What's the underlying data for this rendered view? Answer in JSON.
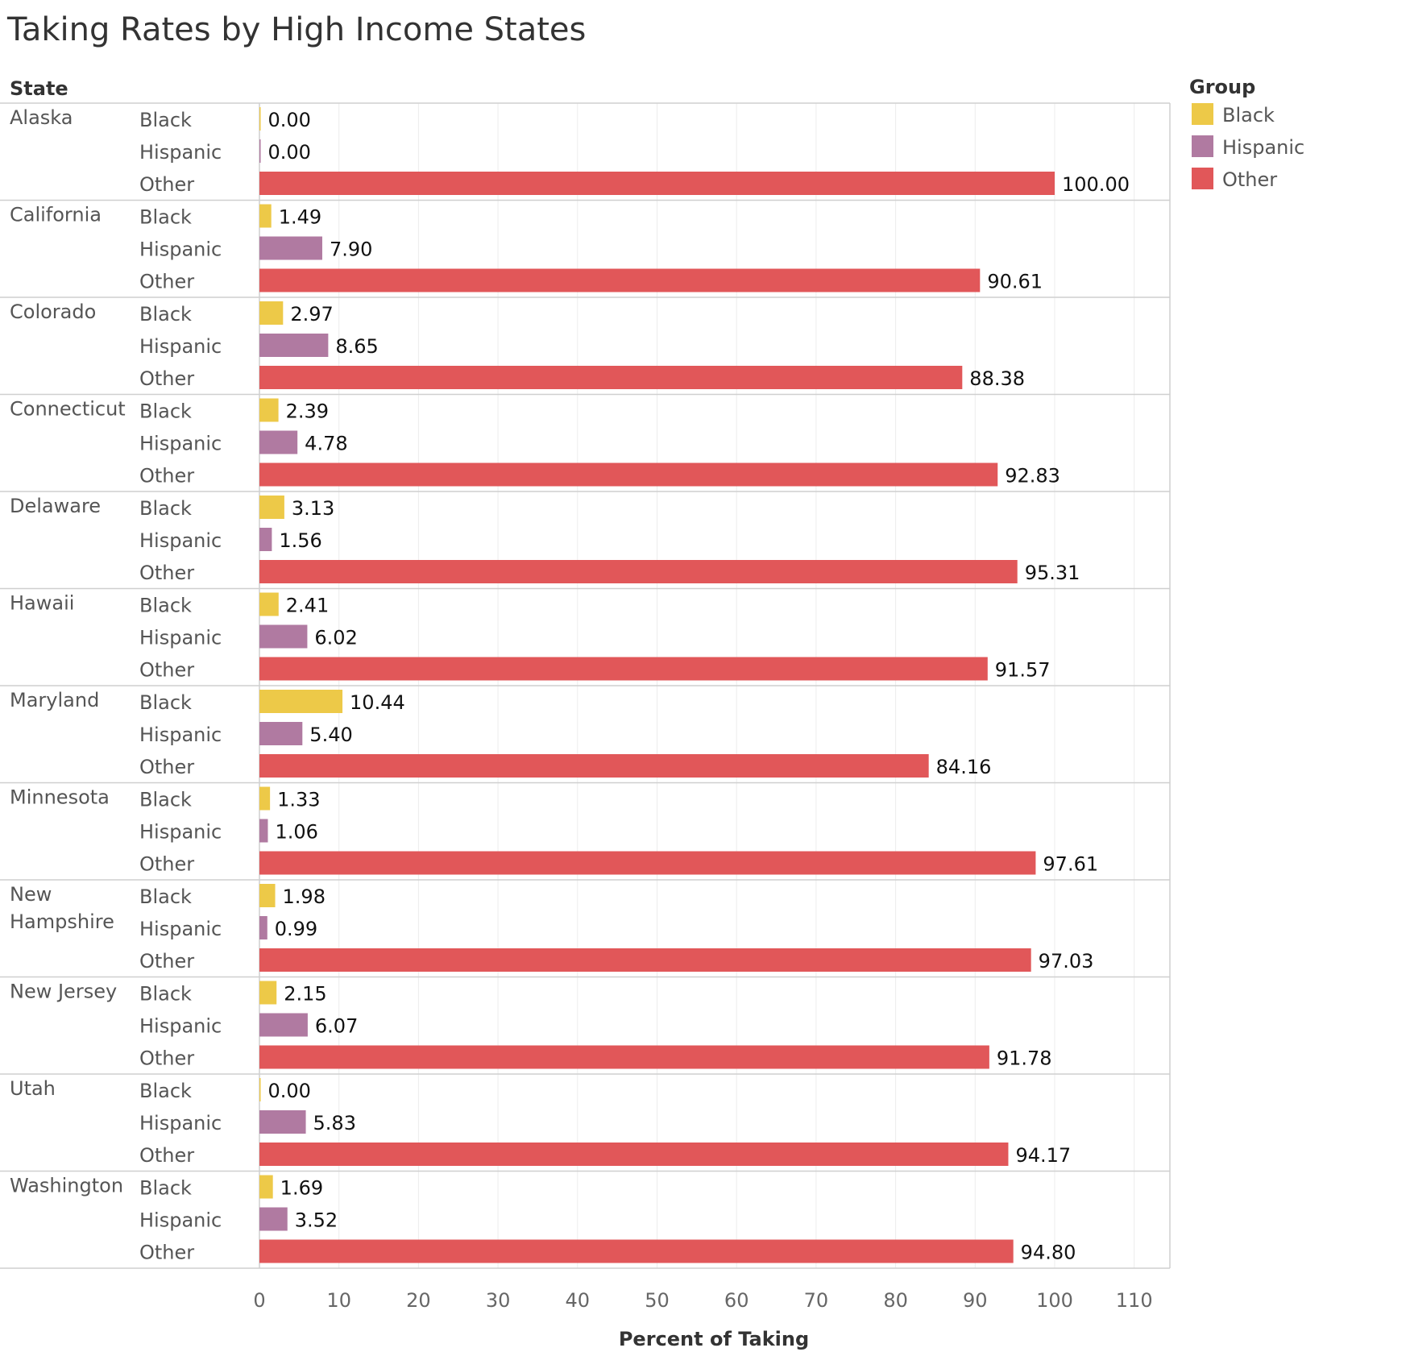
{
  "chart_data": {
    "type": "bar",
    "orientation": "horizontal",
    "title": "Taking Rates by High Income States",
    "row_header": "State",
    "xlabel": "Percent of Taking",
    "xlim": [
      0,
      110
    ],
    "xticks": [
      0,
      10,
      20,
      30,
      40,
      50,
      60,
      70,
      80,
      90,
      100,
      110
    ],
    "grid": true,
    "legend": {
      "title": "Group",
      "position": "top-right",
      "entries": [
        {
          "name": "Black",
          "color": "#EDC948"
        },
        {
          "name": "Hispanic",
          "color": "#B07AA1"
        },
        {
          "name": "Other",
          "color": "#E15759"
        }
      ]
    },
    "states": [
      {
        "name": "Alaska",
        "values": {
          "Black": 0.0,
          "Hispanic": 0.0,
          "Other": 100.0
        }
      },
      {
        "name": "California",
        "values": {
          "Black": 1.49,
          "Hispanic": 7.9,
          "Other": 90.61
        }
      },
      {
        "name": "Colorado",
        "values": {
          "Black": 2.97,
          "Hispanic": 8.65,
          "Other": 88.38
        }
      },
      {
        "name": "Connecticut",
        "values": {
          "Black": 2.39,
          "Hispanic": 4.78,
          "Other": 92.83
        }
      },
      {
        "name": "Delaware",
        "values": {
          "Black": 3.13,
          "Hispanic": 1.56,
          "Other": 95.31
        }
      },
      {
        "name": "Hawaii",
        "values": {
          "Black": 2.41,
          "Hispanic": 6.02,
          "Other": 91.57
        }
      },
      {
        "name": "Maryland",
        "values": {
          "Black": 10.44,
          "Hispanic": 5.4,
          "Other": 84.16
        }
      },
      {
        "name": "Minnesota",
        "values": {
          "Black": 1.33,
          "Hispanic": 1.06,
          "Other": 97.61
        }
      },
      {
        "name": "New Hampshire",
        "values": {
          "Black": 1.98,
          "Hispanic": 0.99,
          "Other": 97.03
        }
      },
      {
        "name": "New Jersey",
        "values": {
          "Black": 2.15,
          "Hispanic": 6.07,
          "Other": 91.78
        }
      },
      {
        "name": "Utah",
        "values": {
          "Black": 0.0,
          "Hispanic": 5.83,
          "Other": 94.17
        }
      },
      {
        "name": "Washington",
        "values": {
          "Black": 1.69,
          "Hispanic": 3.52,
          "Other": 94.8
        }
      }
    ]
  }
}
